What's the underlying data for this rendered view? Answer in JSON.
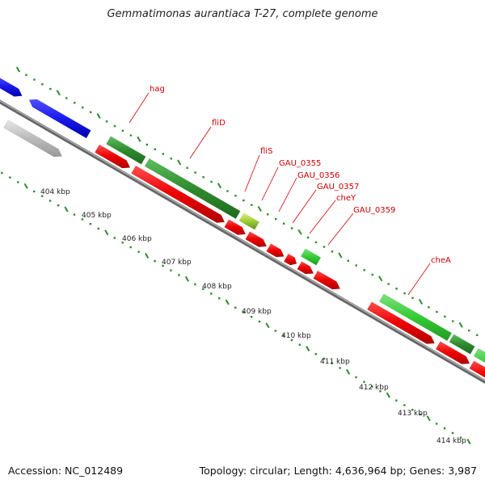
{
  "title": "Gemmatimonas aurantiaca T-27, complete genome",
  "accession": "Accession: NC_012489",
  "summary": "Topology: circular; Length: 4,636,964 bp; Genes: 3,987",
  "ticks": [
    "404 kbp",
    "405 kbp",
    "406 kbp",
    "407 kbp",
    "408 kbp",
    "409 kbp",
    "410 kbp",
    "411 kbp",
    "412 kbp",
    "413 kbp",
    "414 kbp"
  ],
  "genes": [
    {
      "label": "hag",
      "color": "#2e8b2e"
    },
    {
      "label": "fliD",
      "color": "#2e8b2e"
    },
    {
      "label": "fliS",
      "color": "#9acd32"
    },
    {
      "label": "GAU_0355",
      "color": "#ee0000"
    },
    {
      "label": "GAU_0356",
      "color": "#ee0000"
    },
    {
      "label": "GAU_0357",
      "color": "#ee0000"
    },
    {
      "label": "cheY",
      "color": "#33cc33"
    },
    {
      "label": "GAU_0359",
      "color": "#ee0000"
    },
    {
      "label": "cheA",
      "color": "#2ea02e"
    }
  ],
  "colors": {
    "label_text": "#cc0000",
    "tick_text": "#222222",
    "dots": "#2e8b2e",
    "backbone": "#808080",
    "blue_gene": "#1a1aee",
    "gray_gene": "#bbbbbb"
  }
}
